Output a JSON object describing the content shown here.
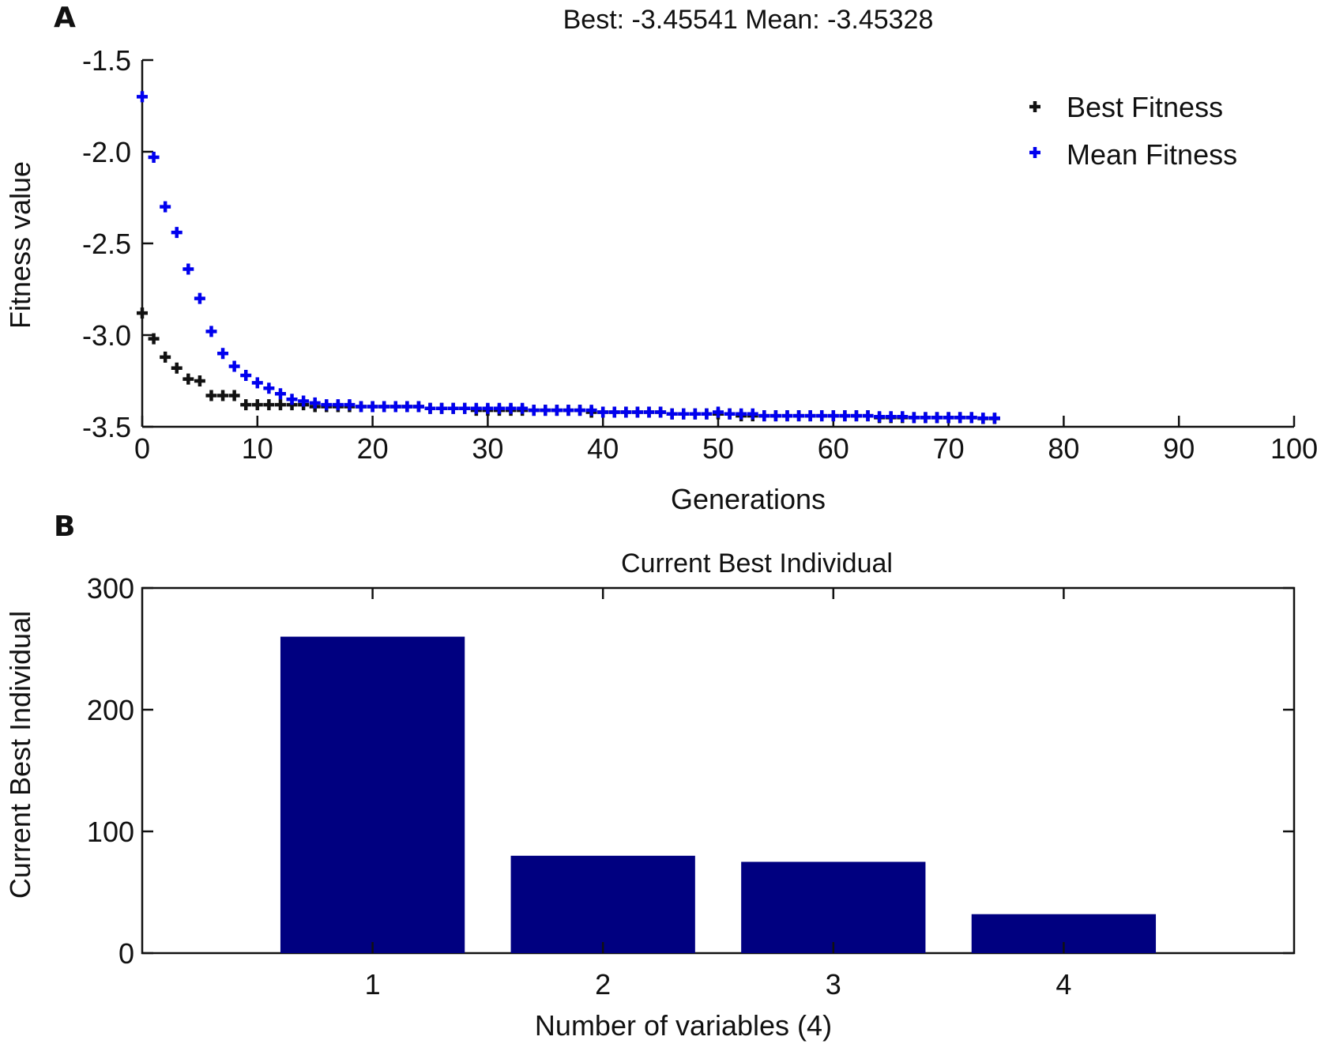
{
  "figure": {
    "panel_a_letter": "A",
    "panel_b_letter": "B"
  },
  "chart_data": [
    {
      "type": "scatter",
      "title": "Best: -3.45541  Mean: -3.45328",
      "xlabel": "Generations",
      "ylabel": "Fitness value",
      "xlim": [
        0,
        100
      ],
      "ylim": [
        -3.5,
        -1.5
      ],
      "xticks": [
        "0",
        "10",
        "20",
        "30",
        "40",
        "50",
        "60",
        "70",
        "80",
        "90",
        "100"
      ],
      "yticks": [
        "-1.5",
        "-2.0",
        "-2.5",
        "-3.0",
        "-3.5"
      ],
      "grid": false,
      "legend_position": "top-right",
      "x": [
        0,
        1,
        2,
        3,
        4,
        5,
        6,
        7,
        8,
        9,
        10,
        11,
        12,
        13,
        14,
        15,
        16,
        17,
        18,
        19,
        20,
        21,
        22,
        23,
        24,
        25,
        26,
        27,
        28,
        29,
        30,
        31,
        32,
        33,
        34,
        35,
        36,
        37,
        38,
        39,
        40,
        41,
        42,
        43,
        44,
        45,
        46,
        47,
        48,
        49,
        50,
        51,
        52,
        53,
        54,
        55,
        56,
        57,
        58,
        59,
        60,
        61,
        62,
        63,
        64,
        65,
        66,
        67,
        68,
        69,
        70,
        71,
        72,
        73,
        74
      ],
      "series": [
        {
          "name": "Best Fitness",
          "color": "#111111",
          "values": [
            -2.88,
            -3.02,
            -3.12,
            -3.18,
            -3.24,
            -3.25,
            -3.33,
            -3.33,
            -3.33,
            -3.38,
            -3.38,
            -3.38,
            -3.38,
            -3.38,
            -3.38,
            -3.39,
            -3.39,
            -3.39,
            -3.39,
            -3.39,
            -3.39,
            -3.39,
            -3.39,
            -3.39,
            -3.39,
            -3.4,
            -3.4,
            -3.4,
            -3.4,
            -3.41,
            -3.41,
            -3.41,
            -3.41,
            -3.41,
            -3.41,
            -3.41,
            -3.41,
            -3.41,
            -3.41,
            -3.42,
            -3.42,
            -3.42,
            -3.42,
            -3.42,
            -3.42,
            -3.42,
            -3.43,
            -3.43,
            -3.43,
            -3.43,
            -3.43,
            -3.43,
            -3.44,
            -3.44,
            -3.44,
            -3.44,
            -3.44,
            -3.44,
            -3.44,
            -3.44,
            -3.44,
            -3.44,
            -3.44,
            -3.44,
            -3.45,
            -3.45,
            -3.45,
            -3.45,
            -3.45,
            -3.45,
            -3.45,
            -3.45,
            -3.45,
            -3.455,
            -3.455
          ]
        },
        {
          "name": "Mean Fitness",
          "color": "#0000ee",
          "values": [
            -1.7,
            -2.03,
            -2.3,
            -2.44,
            -2.64,
            -2.8,
            -2.98,
            -3.1,
            -3.17,
            -3.22,
            -3.26,
            -3.29,
            -3.32,
            -3.35,
            -3.36,
            -3.37,
            -3.38,
            -3.38,
            -3.38,
            -3.39,
            -3.39,
            -3.39,
            -3.39,
            -3.39,
            -3.39,
            -3.4,
            -3.4,
            -3.4,
            -3.4,
            -3.4,
            -3.4,
            -3.4,
            -3.4,
            -3.4,
            -3.41,
            -3.41,
            -3.41,
            -3.41,
            -3.41,
            -3.41,
            -3.42,
            -3.42,
            -3.42,
            -3.42,
            -3.42,
            -3.42,
            -3.43,
            -3.43,
            -3.43,
            -3.43,
            -3.42,
            -3.43,
            -3.43,
            -3.43,
            -3.44,
            -3.44,
            -3.44,
            -3.44,
            -3.44,
            -3.44,
            -3.44,
            -3.44,
            -3.44,
            -3.44,
            -3.445,
            -3.445,
            -3.445,
            -3.45,
            -3.45,
            -3.45,
            -3.45,
            -3.45,
            -3.45,
            -3.453,
            -3.453
          ]
        }
      ]
    },
    {
      "type": "bar",
      "title": "Current Best Individual",
      "xlabel": "Number of variables (4)",
      "ylabel": "Current Best Individual",
      "xlim": [
        0,
        5
      ],
      "ylim": [
        0,
        300
      ],
      "yticks": [
        "0",
        "100",
        "200",
        "300"
      ],
      "categories": [
        "1",
        "2",
        "3",
        "4"
      ],
      "values": [
        260,
        80,
        75,
        32
      ],
      "bar_color": "#000080",
      "grid": false
    }
  ]
}
